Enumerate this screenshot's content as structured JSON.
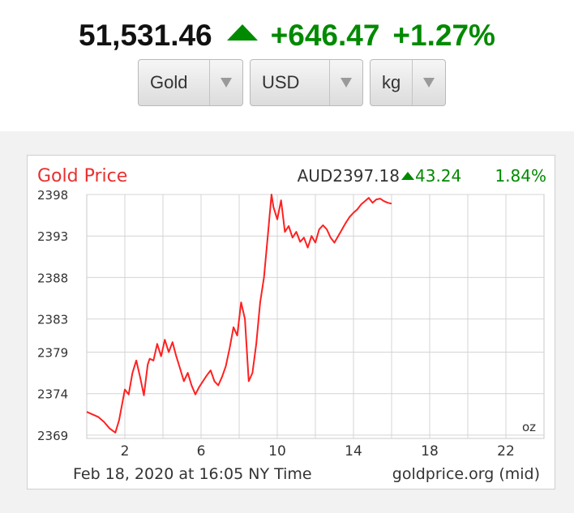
{
  "header": {
    "price": "51,531.46",
    "change": "+646.47",
    "change_pct": "+1.27%",
    "direction_icon": "triangle-up-icon",
    "up_color": "#008a00"
  },
  "selectors": {
    "metal": "Gold",
    "currency": "USD",
    "unit": "kg"
  },
  "chart_data": {
    "type": "line",
    "title": "Gold Price",
    "price_label": "AUD2397.18",
    "change": "43.24",
    "change_pct": "1.84%",
    "unit_label": "oz",
    "timestamp": "Feb 18, 2020 at 16:05 NY Time",
    "source": "goldprice.org (mid)",
    "line_color": "#ff2020",
    "title_color": "#e8302f",
    "grid": true,
    "xlim": [
      0,
      24
    ],
    "ylim": [
      2368.6,
      2398
    ],
    "x_ticks": [
      2,
      6,
      10,
      14,
      18,
      22
    ],
    "y_ticks": [
      2398,
      2393,
      2388,
      2383,
      2379,
      2374,
      2369
    ],
    "series": [
      {
        "x": [
          0,
          0.3,
          0.6,
          0.9,
          1.2,
          1.5,
          1.7,
          2.0,
          2.2,
          2.4,
          2.6,
          2.8,
          3.0,
          3.2,
          3.3,
          3.5,
          3.7,
          3.9,
          4.1,
          4.3,
          4.5,
          4.7,
          4.9,
          5.1,
          5.3,
          5.5,
          5.7,
          5.9,
          6.1,
          6.3,
          6.5,
          6.7,
          6.9,
          7.1,
          7.3,
          7.5,
          7.7,
          7.9,
          8.1,
          8.3,
          8.5,
          8.7,
          8.9,
          9.1,
          9.3,
          9.5,
          9.7,
          9.8,
          10.0,
          10.2,
          10.4,
          10.6,
          10.8,
          11.0,
          11.2,
          11.4,
          11.6,
          11.8,
          12.0,
          12.2,
          12.4,
          12.6,
          12.8,
          13.0,
          13.2,
          13.4,
          13.6,
          13.8,
          14.0,
          14.2,
          14.4,
          14.6,
          14.8,
          15.0,
          15.2,
          15.4,
          15.6,
          15.8,
          16.0
        ],
        "y": [
          2371.8,
          2371.5,
          2371.2,
          2370.6,
          2369.8,
          2369.3,
          2370.8,
          2374.5,
          2373.9,
          2376.5,
          2378.0,
          2376.0,
          2373.8,
          2377.5,
          2378.2,
          2378.0,
          2380.0,
          2378.5,
          2380.5,
          2379.0,
          2380.2,
          2378.5,
          2377.0,
          2375.5,
          2376.5,
          2375.0,
          2373.9,
          2374.8,
          2375.5,
          2376.2,
          2376.8,
          2375.5,
          2375.0,
          2376.0,
          2377.3,
          2379.5,
          2382.0,
          2381.0,
          2385.0,
          2383.0,
          2375.5,
          2376.5,
          2380.0,
          2385.0,
          2388.0,
          2393.0,
          2398.0,
          2396.5,
          2395.0,
          2397.3,
          2393.5,
          2394.2,
          2392.8,
          2393.5,
          2392.3,
          2392.8,
          2391.6,
          2393.0,
          2392.2,
          2393.8,
          2394.3,
          2393.8,
          2392.8,
          2392.2,
          2393.0,
          2393.8,
          2394.6,
          2395.3,
          2395.8,
          2396.2,
          2396.8,
          2397.2,
          2397.6,
          2397.0,
          2397.4,
          2397.5,
          2397.2,
          2397.0,
          2396.9
        ]
      }
    ]
  }
}
